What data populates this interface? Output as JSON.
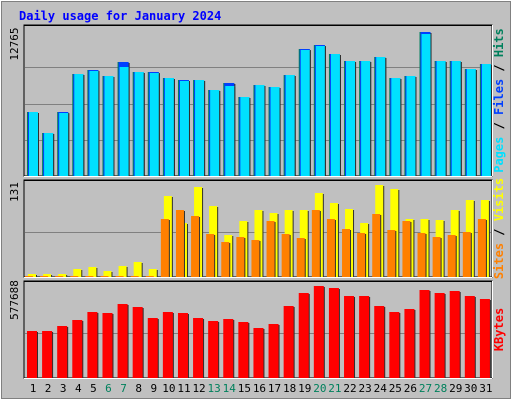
{
  "title": "Daily usage for January 2024",
  "colors": {
    "hits": "#00805c",
    "files": "#0040ff",
    "pages": "#00e0ff",
    "visits": "#ffff00",
    "sites": "#ff8000",
    "kbytes": "#ff0000",
    "background": "#c0c0c0",
    "title": "#0000ff",
    "weekend_day": "#00805c",
    "weekday_day": "#000000"
  },
  "chart_data": [
    {
      "type": "bar",
      "panel": "hits-files-pages",
      "ymax_label": "12765",
      "ylim": [
        0,
        12765
      ],
      "legend": [
        "Hits",
        "Files",
        "Pages"
      ],
      "legend_placement": "right, vertical",
      "categories": [
        "1",
        "2",
        "3",
        "4",
        "5",
        "6",
        "7",
        "8",
        "9",
        "10",
        "11",
        "12",
        "13",
        "14",
        "15",
        "16",
        "17",
        "18",
        "19",
        "20",
        "21",
        "22",
        "23",
        "24",
        "25",
        "26",
        "27",
        "28",
        "29",
        "30",
        "31"
      ],
      "series": [
        {
          "name": "Hits",
          "values": [
            5670,
            3800,
            5640,
            9020,
            9340,
            8800,
            10020,
            9150,
            9150,
            8610,
            8420,
            8480,
            7600,
            8200,
            6960,
            8000,
            7800,
            8900,
            11190,
            11540,
            10780,
            10150,
            10150,
            10480,
            8640,
            8800,
            12640,
            10150,
            10080,
            9450,
            9900
          ]
        },
        {
          "name": "Files",
          "values": [
            5670,
            3800,
            5640,
            9020,
            9340,
            8800,
            10020,
            9150,
            9150,
            8610,
            8420,
            8480,
            7600,
            8200,
            6960,
            8000,
            7800,
            8900,
            11190,
            11540,
            10780,
            10150,
            10150,
            10480,
            8640,
            8800,
            12640,
            10150,
            10080,
            9450,
            9900
          ]
        },
        {
          "name": "Pages",
          "values": [
            5670,
            3800,
            5520,
            8990,
            9270,
            8800,
            9570,
            9120,
            9080,
            8610,
            8360,
            8420,
            7580,
            7920,
            6960,
            8000,
            7800,
            8850,
            11130,
            11470,
            10780,
            10150,
            10150,
            10480,
            8640,
            8800,
            12480,
            10150,
            10080,
            9450,
            9900
          ]
        }
      ]
    },
    {
      "type": "bar",
      "panel": "visits-sites",
      "ymax_label": "131",
      "ylim": [
        0,
        131
      ],
      "legend": [
        "Visits",
        "Sites"
      ],
      "legend_placement": "right, vertical",
      "categories": [
        "1",
        "2",
        "3",
        "4",
        "5",
        "6",
        "7",
        "8",
        "9",
        "10",
        "11",
        "12",
        "13",
        "14",
        "15",
        "16",
        "17",
        "18",
        "19",
        "20",
        "21",
        "22",
        "23",
        "24",
        "25",
        "26",
        "27",
        "28",
        "29",
        "30",
        "31"
      ],
      "series": [
        {
          "name": "Visits",
          "values": [
            4,
            4,
            4,
            12,
            14,
            9,
            16,
            21,
            12,
            117,
            78,
            129,
            102,
            60,
            81,
            96,
            92,
            96,
            96,
            121,
            106,
            98,
            78,
            132,
            127,
            84,
            84,
            82,
            96,
            111,
            111
          ]
        },
        {
          "name": "Sites",
          "values": [
            2,
            2,
            2,
            2,
            2,
            2,
            2,
            2,
            2,
            84,
            96,
            88,
            62,
            51,
            58,
            53,
            80,
            62,
            56,
            96,
            84,
            69,
            64,
            91,
            67,
            81,
            63,
            58,
            60,
            65,
            84
          ]
        }
      ]
    },
    {
      "type": "bar",
      "panel": "kbytes",
      "ymax_label": "577688",
      "ylim": [
        0,
        577688
      ],
      "legend": [
        "KBytes"
      ],
      "legend_placement": "right, vertical",
      "categories": [
        "1",
        "2",
        "3",
        "4",
        "5",
        "6",
        "7",
        "8",
        "9",
        "10",
        "11",
        "12",
        "13",
        "14",
        "15",
        "16",
        "17",
        "18",
        "19",
        "20",
        "21",
        "22",
        "23",
        "24",
        "25",
        "26",
        "27",
        "28",
        "29",
        "30",
        "31"
      ],
      "series": [
        {
          "name": "KBytes",
          "values": [
            300000,
            300000,
            330000,
            370000,
            420000,
            410000,
            470000,
            450000,
            380000,
            420000,
            415000,
            380000,
            365000,
            375000,
            355000,
            320000,
            345000,
            460000,
            540000,
            585000,
            570000,
            520000,
            520000,
            460000,
            420000,
            440000,
            560000,
            540000,
            550000,
            520000,
            500000
          ]
        }
      ]
    }
  ],
  "day_colors": [
    "weekday",
    "weekday",
    "weekday",
    "weekday",
    "weekday",
    "weekend",
    "weekend",
    "weekday",
    "weekday",
    "weekday",
    "weekday",
    "weekday",
    "weekend",
    "weekend",
    "weekday",
    "weekday",
    "weekday",
    "weekday",
    "weekday",
    "weekend",
    "weekend",
    "weekday",
    "weekday",
    "weekday",
    "weekday",
    "weekday",
    "weekend",
    "weekend",
    "weekday",
    "weekday",
    "weekday"
  ]
}
